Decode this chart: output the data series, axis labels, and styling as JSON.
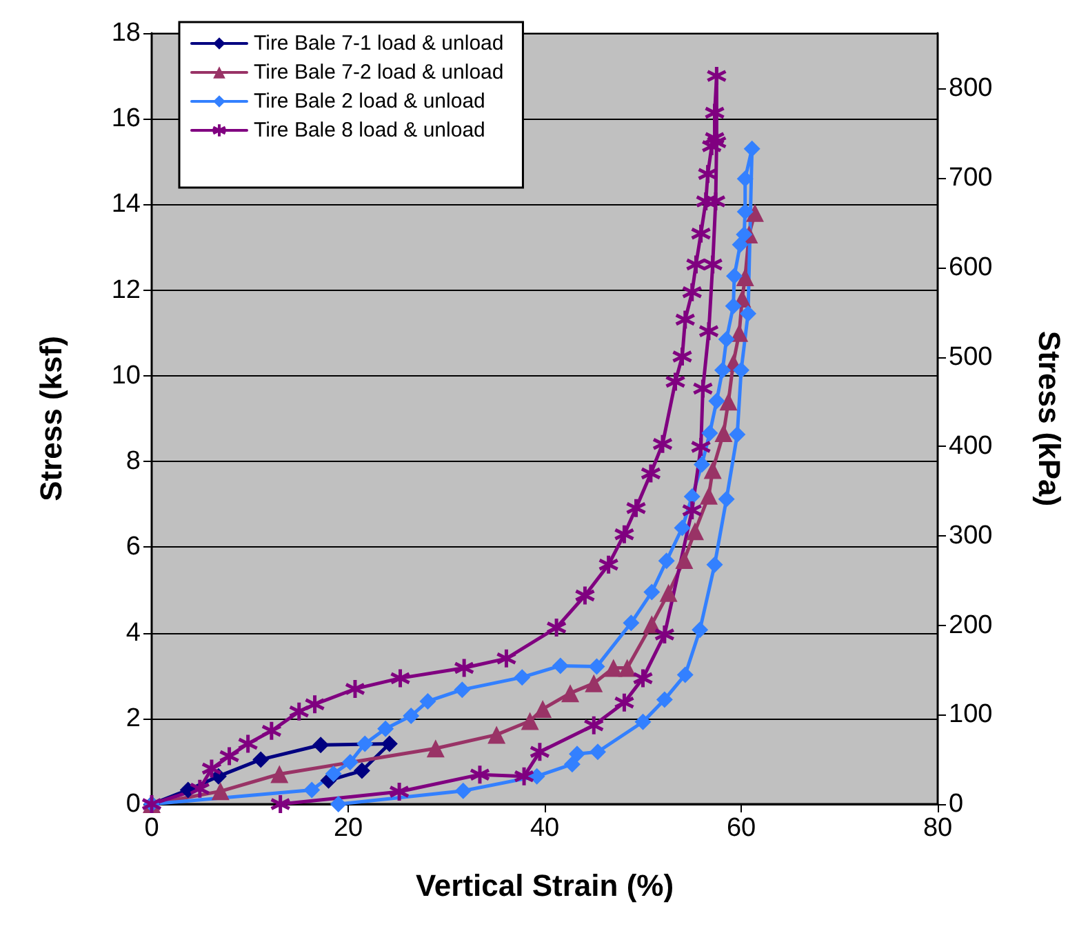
{
  "chart_data": {
    "type": "line",
    "xlabel": "Vertical Strain (%)",
    "ylabel": "Stress (ksf)",
    "y2label": "Stress (kPa)",
    "xlim": [
      0,
      80
    ],
    "xticks": [
      0,
      20,
      40,
      60,
      80
    ],
    "ylim": [
      0,
      18
    ],
    "yticks": [
      0,
      2,
      4,
      6,
      8,
      10,
      12,
      14,
      16,
      18
    ],
    "y2lim": [
      0,
      862
    ],
    "y2ticks": [
      0,
      100,
      200,
      300,
      400,
      500,
      600,
      700,
      800
    ],
    "grid": "y",
    "legend": "top left",
    "line_style": "solid",
    "series": [
      {
        "name": "Tire Bale 7-1 load & unload",
        "color": "#000080",
        "marker": "diamond",
        "x": [
          0,
          3.7,
          6.8,
          11.1,
          17.2,
          24.2,
          21.4,
          18.0
        ],
        "values": [
          0,
          0.33,
          0.65,
          1.04,
          1.38,
          1.41,
          0.78,
          0.55
        ]
      },
      {
        "name": "Tire Bale 7-2 load & unload",
        "color": "#993366",
        "marker": "triangle",
        "x": [
          0,
          7,
          13,
          28.9,
          35.1,
          38.5,
          39.8,
          42.6,
          45,
          47,
          48.4,
          50.9,
          52.6,
          54.2,
          55.3,
          56.7,
          57.1,
          58.2,
          58.7,
          59.2,
          59.8,
          60.1,
          60.4,
          60.8,
          61.4
        ],
        "values": [
          0,
          0.3,
          0.7,
          1.3,
          1.62,
          1.94,
          2.22,
          2.59,
          2.82,
          3.18,
          3.18,
          4.2,
          4.93,
          5.7,
          6.37,
          7.2,
          7.8,
          8.66,
          9.4,
          10.3,
          11.0,
          11.8,
          12.3,
          13.3,
          13.8
        ]
      },
      {
        "name": "Tire Bale 2 load & unload",
        "color": "#3380ff",
        "marker": "diamond",
        "x": [
          0,
          16.3,
          18.5,
          20.2,
          21.7,
          23.8,
          26.4,
          28.1,
          31.6,
          37.7,
          41.6,
          45.3,
          48.8,
          50.9,
          52.4,
          54.0,
          55.0,
          56.0,
          56.8,
          57.5,
          58.1,
          58.5,
          59.2,
          59.3,
          59.9,
          60.3,
          60.4,
          60.4,
          61.1,
          60.7,
          60.0,
          59.6,
          58.5,
          57.3,
          55.8,
          54.3,
          52.2,
          50.0,
          45.4,
          43.3,
          42.8,
          39.2,
          31.7,
          19
        ],
        "values": [
          0,
          0.33,
          0.71,
          0.98,
          1.41,
          1.76,
          2.06,
          2.4,
          2.67,
          2.96,
          3.23,
          3.21,
          4.23,
          4.95,
          5.68,
          6.45,
          7.18,
          7.93,
          8.66,
          9.41,
          10.13,
          10.85,
          11.63,
          12.33,
          13.06,
          13.3,
          13.83,
          14.6,
          15.3,
          11.45,
          10.13,
          8.63,
          7.12,
          5.59,
          4.07,
          3.02,
          2.44,
          1.92,
          1.22,
          1.17,
          0.93,
          0.65,
          0.31,
          0
        ]
      },
      {
        "name": "Tire Bale 8 load & unload",
        "color": "#800080",
        "marker": "cross",
        "x": [
          0,
          4.9,
          6.1,
          7.9,
          9.8,
          12.2,
          15.0,
          16.6,
          20.7,
          25.3,
          31.8,
          36.1,
          41.2,
          44.1,
          46.5,
          48.1,
          49.3,
          50.8,
          52.0,
          53.3,
          54.0,
          54.3,
          55.0,
          55.4,
          55.9,
          56.4,
          56.6,
          57.0,
          57.3,
          57.3,
          57.5,
          57.5,
          57.4,
          57.1,
          56.7,
          56.1,
          55.9,
          55.0,
          52.2,
          50.0,
          48.1,
          45.0,
          39.5,
          37.9,
          33.4,
          25.2,
          13.1
        ],
        "values": [
          0,
          0.36,
          0.83,
          1.12,
          1.41,
          1.71,
          2.16,
          2.33,
          2.69,
          2.94,
          3.18,
          3.4,
          4.12,
          4.87,
          5.59,
          6.3,
          6.91,
          7.72,
          8.41,
          9.86,
          10.45,
          11.31,
          11.95,
          12.6,
          13.32,
          14.07,
          14.71,
          15.36,
          15.55,
          16.14,
          17.0,
          15.45,
          14.07,
          12.6,
          11.04,
          9.7,
          8.34,
          6.86,
          3.96,
          2.94,
          2.37,
          1.84,
          1.22,
          0.65,
          0.69,
          0.29,
          0
        ]
      }
    ]
  }
}
